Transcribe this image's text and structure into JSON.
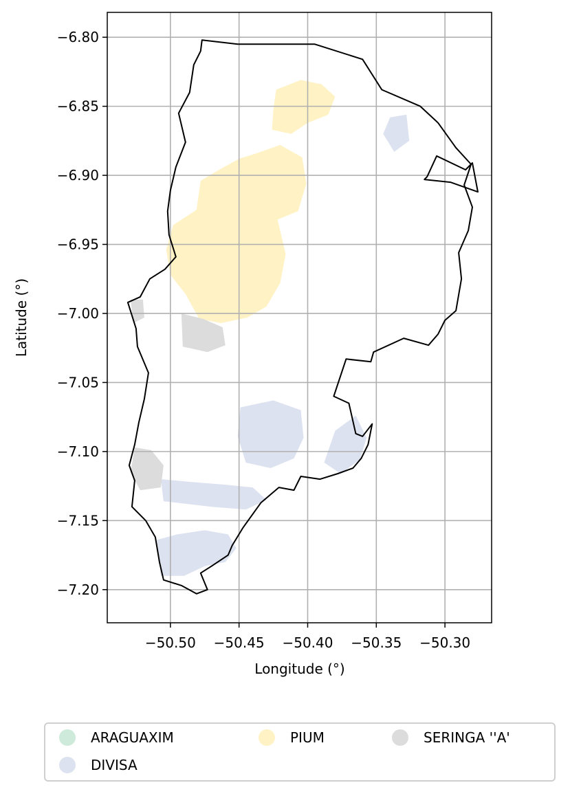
{
  "chart_data": {
    "type": "map",
    "xlabel": "Longitude (°)",
    "ylabel": "Latitude (°)",
    "xlim": [
      -50.546,
      -50.266
    ],
    "ylim": [
      -7.224,
      -6.782
    ],
    "x_ticks": [
      -50.5,
      -50.45,
      -50.4,
      -50.35,
      -50.3
    ],
    "x_tick_labels": [
      "−50.50",
      "−50.45",
      "−50.40",
      "−50.35",
      "−50.30"
    ],
    "y_ticks": [
      -6.8,
      -6.85,
      -6.9,
      -6.95,
      -7.0,
      -7.05,
      -7.1,
      -7.15,
      -7.2
    ],
    "y_tick_labels": [
      "−6.80",
      "−6.85",
      "−6.90",
      "−6.95",
      "−7.00",
      "−7.05",
      "−7.10",
      "−7.15",
      "−7.20"
    ],
    "grid": true,
    "legend_position": "bottom",
    "legend": [
      {
        "label": "ARAGUAXIM",
        "color": "#cdeadb"
      },
      {
        "label": "DIVISA",
        "color": "#dde2f0"
      },
      {
        "label": "PIUM",
        "color": "#fff2c4"
      },
      {
        "label": "SERINGA ''A'",
        "color": "#dcdcdc"
      }
    ],
    "boundary": [
      [
        -50.477,
        -6.802
      ],
      [
        -50.451,
        -6.805
      ],
      [
        -50.395,
        -6.805
      ],
      [
        -50.36,
        -6.816
      ],
      [
        -50.346,
        -6.838
      ],
      [
        -50.318,
        -6.85
      ],
      [
        -50.305,
        -6.862
      ],
      [
        -50.292,
        -6.88
      ],
      [
        -50.281,
        -6.892
      ],
      [
        -50.286,
        -6.907
      ],
      [
        -50.28,
        -6.923
      ],
      [
        -50.283,
        -6.94
      ],
      [
        -50.29,
        -6.956
      ],
      [
        -50.288,
        -6.975
      ],
      [
        -50.292,
        -6.998
      ],
      [
        -50.3,
        -7.005
      ],
      [
        -50.305,
        -7.015
      ],
      [
        -50.312,
        -7.023
      ],
      [
        -50.33,
        -7.018
      ],
      [
        -50.352,
        -7.028
      ],
      [
        -50.354,
        -7.035
      ],
      [
        -50.372,
        -7.033
      ],
      [
        -50.381,
        -7.06
      ],
      [
        -50.37,
        -7.065
      ],
      [
        -50.365,
        -7.087
      ],
      [
        -50.36,
        -7.089
      ],
      [
        -50.353,
        -7.08
      ],
      [
        -50.356,
        -7.095
      ],
      [
        -50.361,
        -7.105
      ],
      [
        -50.367,
        -7.112
      ],
      [
        -50.378,
        -7.116
      ],
      [
        -50.391,
        -7.12
      ],
      [
        -50.405,
        -7.118
      ],
      [
        -50.41,
        -7.128
      ],
      [
        -50.421,
        -7.126
      ],
      [
        -50.434,
        -7.137
      ],
      [
        -50.447,
        -7.155
      ],
      [
        -50.455,
        -7.168
      ],
      [
        -50.458,
        -7.175
      ],
      [
        -50.47,
        -7.183
      ],
      [
        -50.478,
        -7.188
      ],
      [
        -50.473,
        -7.2
      ],
      [
        -50.481,
        -7.203
      ],
      [
        -50.492,
        -7.197
      ],
      [
        -50.505,
        -7.193
      ],
      [
        -50.508,
        -7.18
      ],
      [
        -50.511,
        -7.162
      ],
      [
        -50.518,
        -7.15
      ],
      [
        -50.528,
        -7.14
      ],
      [
        -50.526,
        -7.121
      ],
      [
        -50.53,
        -7.11
      ],
      [
        -50.526,
        -7.095
      ],
      [
        -50.523,
        -7.079
      ],
      [
        -50.519,
        -7.062
      ],
      [
        -50.516,
        -7.043
      ],
      [
        -50.524,
        -7.024
      ],
      [
        -50.525,
        -7.011
      ],
      [
        -50.531,
        -6.992
      ],
      [
        -50.522,
        -6.988
      ],
      [
        -50.515,
        -6.975
      ],
      [
        -50.504,
        -6.968
      ],
      [
        -50.496,
        -6.959
      ],
      [
        -50.501,
        -6.943
      ],
      [
        -50.502,
        -6.926
      ],
      [
        -50.5,
        -6.911
      ],
      [
        -50.496,
        -6.894
      ],
      [
        -50.489,
        -6.876
      ],
      [
        -50.494,
        -6.855
      ],
      [
        -50.486,
        -6.84
      ],
      [
        -50.483,
        -6.82
      ],
      [
        -50.478,
        -6.81
      ],
      [
        -50.477,
        -6.802
      ]
    ],
    "inner_boundary": [
      [
        -50.313,
        -6.901
      ],
      [
        -50.306,
        -6.886
      ],
      [
        -50.285,
        -6.896
      ],
      [
        -50.28,
        -6.891
      ],
      [
        -50.276,
        -6.912
      ],
      [
        -50.296,
        -6.905
      ],
      [
        -50.315,
        -6.903
      ]
    ],
    "regions": [
      {
        "name": "PIUM",
        "polygon": [
          [
            -50.498,
            -6.936
          ],
          [
            -50.481,
            -6.925
          ],
          [
            -50.478,
            -6.904
          ],
          [
            -50.468,
            -6.898
          ],
          [
            -50.45,
            -6.888
          ],
          [
            -50.437,
            -6.884
          ],
          [
            -50.42,
            -6.878
          ],
          [
            -50.404,
            -6.887
          ],
          [
            -50.401,
            -6.906
          ],
          [
            -50.407,
            -6.926
          ],
          [
            -50.422,
            -6.932
          ],
          [
            -50.416,
            -6.957
          ],
          [
            -50.42,
            -6.978
          ],
          [
            -50.43,
            -6.995
          ],
          [
            -50.444,
            -7.003
          ],
          [
            -50.463,
            -7.007
          ],
          [
            -50.479,
            -7.004
          ],
          [
            -50.489,
            -6.986
          ],
          [
            -50.5,
            -6.972
          ],
          [
            -50.503,
            -6.954
          ]
        ]
      },
      {
        "name": "PIUM",
        "polygon": [
          [
            -50.423,
            -6.838
          ],
          [
            -50.405,
            -6.831
          ],
          [
            -50.39,
            -6.834
          ],
          [
            -50.38,
            -6.843
          ],
          [
            -50.385,
            -6.856
          ],
          [
            -50.4,
            -6.862
          ],
          [
            -50.412,
            -6.87
          ],
          [
            -50.426,
            -6.867
          ],
          [
            -50.425,
            -6.852
          ]
        ]
      },
      {
        "name": "DIVISA",
        "polygon": [
          [
            -50.51,
            -7.164
          ],
          [
            -50.495,
            -7.16
          ],
          [
            -50.475,
            -7.157
          ],
          [
            -50.458,
            -7.16
          ],
          [
            -50.452,
            -7.17
          ],
          [
            -50.46,
            -7.18
          ],
          [
            -50.475,
            -7.183
          ],
          [
            -50.49,
            -7.19
          ],
          [
            -50.507,
            -7.19
          ]
        ]
      },
      {
        "name": "DIVISA",
        "polygon": [
          [
            -50.507,
            -7.12
          ],
          [
            -50.485,
            -7.122
          ],
          [
            -50.46,
            -7.124
          ],
          [
            -50.44,
            -7.126
          ],
          [
            -50.43,
            -7.135
          ],
          [
            -50.445,
            -7.142
          ],
          [
            -50.47,
            -7.14
          ],
          [
            -50.505,
            -7.136
          ]
        ]
      },
      {
        "name": "DIVISA",
        "polygon": [
          [
            -50.449,
            -7.068
          ],
          [
            -50.425,
            -7.063
          ],
          [
            -50.405,
            -7.07
          ],
          [
            -50.403,
            -7.09
          ],
          [
            -50.41,
            -7.105
          ],
          [
            -50.427,
            -7.112
          ],
          [
            -50.445,
            -7.108
          ],
          [
            -50.451,
            -7.089
          ]
        ]
      },
      {
        "name": "DIVISA",
        "polygon": [
          [
            -50.38,
            -7.085
          ],
          [
            -50.365,
            -7.074
          ],
          [
            -50.357,
            -7.09
          ],
          [
            -50.362,
            -7.106
          ],
          [
            -50.376,
            -7.116
          ],
          [
            -50.388,
            -7.108
          ]
        ]
      },
      {
        "name": "DIVISA",
        "polygon": [
          [
            -50.34,
            -6.858
          ],
          [
            -50.328,
            -6.856
          ],
          [
            -50.326,
            -6.875
          ],
          [
            -50.337,
            -6.883
          ],
          [
            -50.345,
            -6.87
          ]
        ]
      },
      {
        "name": "SERINGA ''A'",
        "polygon": [
          [
            -50.526,
            -7.097
          ],
          [
            -50.514,
            -7.099
          ],
          [
            -50.505,
            -7.11
          ],
          [
            -50.507,
            -7.126
          ],
          [
            -50.522,
            -7.128
          ],
          [
            -50.529,
            -7.115
          ]
        ]
      },
      {
        "name": "SERINGA ''A'",
        "polygon": [
          [
            -50.492,
            -7.0
          ],
          [
            -50.476,
            -7.004
          ],
          [
            -50.462,
            -7.01
          ],
          [
            -50.46,
            -7.023
          ],
          [
            -50.473,
            -7.028
          ],
          [
            -50.491,
            -7.024
          ]
        ]
      },
      {
        "name": "SERINGA ''A'",
        "polygon": [
          [
            -50.529,
            -6.99
          ],
          [
            -50.52,
            -6.99
          ],
          [
            -50.519,
            -7.003
          ],
          [
            -50.527,
            -7.007
          ]
        ]
      }
    ]
  }
}
